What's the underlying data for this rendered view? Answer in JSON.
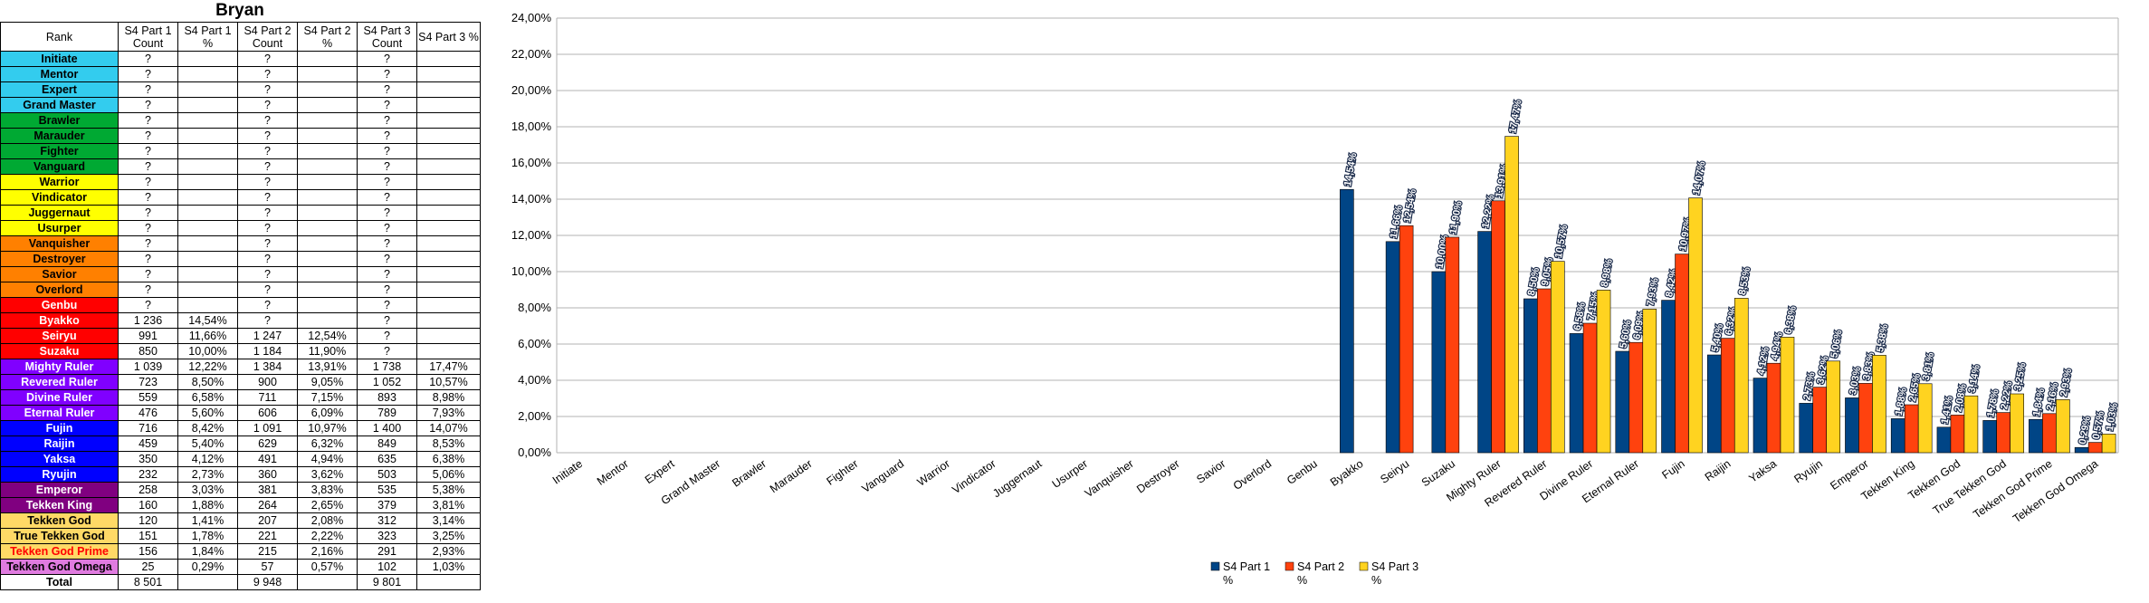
{
  "sheet": {
    "title": "Bryan",
    "columns": [
      "Rank",
      "S4 Part 1 Count",
      "S4 Part 1 %",
      "S4 Part 2 Count",
      "S4 Part 2 %",
      "S4 Part 3 Count",
      "S4 Part 3 %"
    ],
    "rows": [
      {
        "rank": "Initiate",
        "bg": "#33ccee",
        "fg": "#000000",
        "c": [
          "?",
          "",
          "?",
          "",
          "?",
          ""
        ]
      },
      {
        "rank": "Mentor",
        "bg": "#33ccee",
        "fg": "#000000",
        "c": [
          "?",
          "",
          "?",
          "",
          "?",
          ""
        ]
      },
      {
        "rank": "Expert",
        "bg": "#33ccee",
        "fg": "#000000",
        "c": [
          "?",
          "",
          "?",
          "",
          "?",
          ""
        ]
      },
      {
        "rank": "Grand Master",
        "bg": "#33ccee",
        "fg": "#000000",
        "c": [
          "?",
          "",
          "?",
          "",
          "?",
          ""
        ]
      },
      {
        "rank": "Brawler",
        "bg": "#00a933",
        "fg": "#000000",
        "c": [
          "?",
          "",
          "?",
          "",
          "?",
          ""
        ]
      },
      {
        "rank": "Marauder",
        "bg": "#00a933",
        "fg": "#000000",
        "c": [
          "?",
          "",
          "?",
          "",
          "?",
          ""
        ]
      },
      {
        "rank": "Fighter",
        "bg": "#00a933",
        "fg": "#000000",
        "c": [
          "?",
          "",
          "?",
          "",
          "?",
          ""
        ]
      },
      {
        "rank": "Vanguard",
        "bg": "#00a933",
        "fg": "#000000",
        "c": [
          "?",
          "",
          "?",
          "",
          "?",
          ""
        ]
      },
      {
        "rank": "Warrior",
        "bg": "#ffff00",
        "fg": "#000000",
        "c": [
          "?",
          "",
          "?",
          "",
          "?",
          ""
        ]
      },
      {
        "rank": "Vindicator",
        "bg": "#ffff00",
        "fg": "#000000",
        "c": [
          "?",
          "",
          "?",
          "",
          "?",
          ""
        ]
      },
      {
        "rank": "Juggernaut",
        "bg": "#ffff00",
        "fg": "#000000",
        "c": [
          "?",
          "",
          "?",
          "",
          "?",
          ""
        ]
      },
      {
        "rank": "Usurper",
        "bg": "#ffff00",
        "fg": "#000000",
        "c": [
          "?",
          "",
          "?",
          "",
          "?",
          ""
        ]
      },
      {
        "rank": "Vanquisher",
        "bg": "#ff8000",
        "fg": "#000000",
        "c": [
          "?",
          "",
          "?",
          "",
          "?",
          ""
        ]
      },
      {
        "rank": "Destroyer",
        "bg": "#ff8000",
        "fg": "#000000",
        "c": [
          "?",
          "",
          "?",
          "",
          "?",
          ""
        ]
      },
      {
        "rank": "Savior",
        "bg": "#ff8000",
        "fg": "#000000",
        "c": [
          "?",
          "",
          "?",
          "",
          "?",
          ""
        ]
      },
      {
        "rank": "Overlord",
        "bg": "#ff8000",
        "fg": "#000000",
        "c": [
          "?",
          "",
          "?",
          "",
          "?",
          ""
        ]
      },
      {
        "rank": "Genbu",
        "bg": "#ff0000",
        "fg": "#ffffff",
        "c": [
          "?",
          "",
          "?",
          "",
          "?",
          ""
        ]
      },
      {
        "rank": "Byakko",
        "bg": "#ff0000",
        "fg": "#ffffff",
        "c": [
          "1 236",
          "14,54%",
          "?",
          "",
          "?",
          ""
        ]
      },
      {
        "rank": "Seiryu",
        "bg": "#ff0000",
        "fg": "#ffffff",
        "c": [
          "991",
          "11,66%",
          "1 247",
          "12,54%",
          "?",
          ""
        ]
      },
      {
        "rank": "Suzaku",
        "bg": "#ff0000",
        "fg": "#ffffff",
        "c": [
          "850",
          "10,00%",
          "1 184",
          "11,90%",
          "?",
          ""
        ]
      },
      {
        "rank": "Mighty Ruler",
        "bg": "#8000ff",
        "fg": "#ffffff",
        "c": [
          "1 039",
          "12,22%",
          "1 384",
          "13,91%",
          "1 738",
          "17,47%"
        ]
      },
      {
        "rank": "Revered Ruler",
        "bg": "#8000ff",
        "fg": "#ffffff",
        "c": [
          "723",
          "8,50%",
          "900",
          "9,05%",
          "1 052",
          "10,57%"
        ]
      },
      {
        "rank": "Divine Ruler",
        "bg": "#8000ff",
        "fg": "#ffffff",
        "c": [
          "559",
          "6,58%",
          "711",
          "7,15%",
          "893",
          "8,98%"
        ]
      },
      {
        "rank": "Eternal Ruler",
        "bg": "#8000ff",
        "fg": "#ffffff",
        "c": [
          "476",
          "5,60%",
          "606",
          "6,09%",
          "789",
          "7,93%"
        ]
      },
      {
        "rank": "Fujin",
        "bg": "#0000ff",
        "fg": "#ffffff",
        "c": [
          "716",
          "8,42%",
          "1 091",
          "10,97%",
          "1 400",
          "14,07%"
        ]
      },
      {
        "rank": "Raijin",
        "bg": "#0000ff",
        "fg": "#ffffff",
        "c": [
          "459",
          "5,40%",
          "629",
          "6,32%",
          "849",
          "8,53%"
        ]
      },
      {
        "rank": "Yaksa",
        "bg": "#0000ff",
        "fg": "#ffffff",
        "c": [
          "350",
          "4,12%",
          "491",
          "4,94%",
          "635",
          "6,38%"
        ]
      },
      {
        "rank": "Ryujin",
        "bg": "#0000ff",
        "fg": "#ffffff",
        "c": [
          "232",
          "2,73%",
          "360",
          "3,62%",
          "503",
          "5,06%"
        ]
      },
      {
        "rank": "Emperor",
        "bg": "#800080",
        "fg": "#ffffff",
        "c": [
          "258",
          "3,03%",
          "381",
          "3,83%",
          "535",
          "5,38%"
        ]
      },
      {
        "rank": "Tekken King",
        "bg": "#800080",
        "fg": "#ffffff",
        "c": [
          "160",
          "1,88%",
          "264",
          "2,65%",
          "379",
          "3,81%"
        ]
      },
      {
        "rank": "Tekken God",
        "bg": "#ffd966",
        "fg": "#000000",
        "c": [
          "120",
          "1,41%",
          "207",
          "2,08%",
          "312",
          "3,14%"
        ]
      },
      {
        "rank": "True Tekken God",
        "bg": "#ffd966",
        "fg": "#000000",
        "c": [
          "151",
          "1,78%",
          "221",
          "2,22%",
          "323",
          "3,25%"
        ]
      },
      {
        "rank": "Tekken God Prime",
        "bg": "#ffd966",
        "fg": "#ff0000",
        "c": [
          "156",
          "1,84%",
          "215",
          "2,16%",
          "291",
          "2,93%"
        ]
      },
      {
        "rank": "Tekken God Omega",
        "bg": "#e07be0",
        "fg": "#000000",
        "c": [
          "25",
          "0,29%",
          "57",
          "0,57%",
          "102",
          "1,03%"
        ]
      },
      {
        "rank": "Total",
        "bg": "#ffffff",
        "fg": "#000000",
        "c": [
          "8 501",
          "",
          "9 948",
          "",
          "9 801",
          ""
        ]
      }
    ]
  },
  "chart_data": {
    "type": "bar",
    "categories": [
      "Initiate",
      "Mentor",
      "Expert",
      "Grand Master",
      "Brawler",
      "Marauder",
      "Fighter",
      "Vanguard",
      "Warrior",
      "Vindicator",
      "Juggernaut",
      "Usurper",
      "Vanquisher",
      "Destroyer",
      "Savior",
      "Overlord",
      "Genbu",
      "Byakko",
      "Seiryu",
      "Suzaku",
      "Mighty Ruler",
      "Revered Ruler",
      "Divine Ruler",
      "Eternal Ruler",
      "Fujin",
      "Raijin",
      "Yaksa",
      "Ryujin",
      "Emperor",
      "Tekken King",
      "Tekken God",
      "True Tekken God",
      "Tekken God Prime",
      "Tekken God Omega"
    ],
    "series": [
      {
        "name": "S4 Part 1 %",
        "color": "#004586",
        "values": [
          null,
          null,
          null,
          null,
          null,
          null,
          null,
          null,
          null,
          null,
          null,
          null,
          null,
          null,
          null,
          null,
          null,
          14.54,
          11.66,
          10.0,
          12.22,
          8.5,
          6.58,
          5.6,
          8.42,
          5.4,
          4.12,
          2.73,
          3.03,
          1.88,
          1.41,
          1.78,
          1.84,
          0.29
        ],
        "labels": [
          null,
          null,
          null,
          null,
          null,
          null,
          null,
          null,
          null,
          null,
          null,
          null,
          null,
          null,
          null,
          null,
          null,
          "14,54%",
          "11,66%",
          "10,00%",
          "12,22%",
          "8,50%",
          "6,58%",
          "5,60%",
          "8,42%",
          "5,40%",
          "4,12%",
          "2,73%",
          "3,03%",
          "1,88%",
          "1,41%",
          "1,78%",
          "1,84%",
          "0,29%"
        ]
      },
      {
        "name": "S4 Part 2 %",
        "color": "#ff420e",
        "values": [
          null,
          null,
          null,
          null,
          null,
          null,
          null,
          null,
          null,
          null,
          null,
          null,
          null,
          null,
          null,
          null,
          null,
          null,
          12.54,
          11.9,
          13.91,
          9.05,
          7.15,
          6.09,
          10.97,
          6.32,
          4.94,
          3.62,
          3.83,
          2.65,
          2.08,
          2.22,
          2.16,
          0.57
        ],
        "labels": [
          null,
          null,
          null,
          null,
          null,
          null,
          null,
          null,
          null,
          null,
          null,
          null,
          null,
          null,
          null,
          null,
          null,
          null,
          "12,54%",
          "11,90%",
          "13,91%",
          "9,05%",
          "7,15%",
          "6,09%",
          "10,97%",
          "6,32%",
          "4,94%",
          "3,62%",
          "3,83%",
          "2,65%",
          "2,08%",
          "2,22%",
          "2,16%",
          "0,57%"
        ]
      },
      {
        "name": "S4 Part 3 %",
        "color": "#ffd320",
        "values": [
          null,
          null,
          null,
          null,
          null,
          null,
          null,
          null,
          null,
          null,
          null,
          null,
          null,
          null,
          null,
          null,
          null,
          null,
          null,
          null,
          17.47,
          10.57,
          8.98,
          7.93,
          14.07,
          8.53,
          6.38,
          5.06,
          5.38,
          3.81,
          3.14,
          3.25,
          2.93,
          1.03
        ],
        "labels": [
          null,
          null,
          null,
          null,
          null,
          null,
          null,
          null,
          null,
          null,
          null,
          null,
          null,
          null,
          null,
          null,
          null,
          null,
          null,
          null,
          "17,47%",
          "10,57%",
          "8,98%",
          "7,93%",
          "14,07%",
          "8,53%",
          "6,38%",
          "5,06%",
          "5,38%",
          "3,81%",
          "3,14%",
          "3,25%",
          "2,93%",
          "1,03%"
        ]
      }
    ],
    "ylim": [
      0,
      24
    ],
    "y_ticks": [
      "0,00%",
      "2,00%",
      "4,00%",
      "6,00%",
      "8,00%",
      "10,00%",
      "12,00%",
      "14,00%",
      "16,00%",
      "18,00%",
      "20,00%",
      "22,00%",
      "24,00%"
    ],
    "grid": true,
    "legend": "bottom-center",
    "legend_entries": [
      "S4 Part 1 %",
      "S4 Part 2 %",
      "S4 Part 3 %"
    ]
  }
}
